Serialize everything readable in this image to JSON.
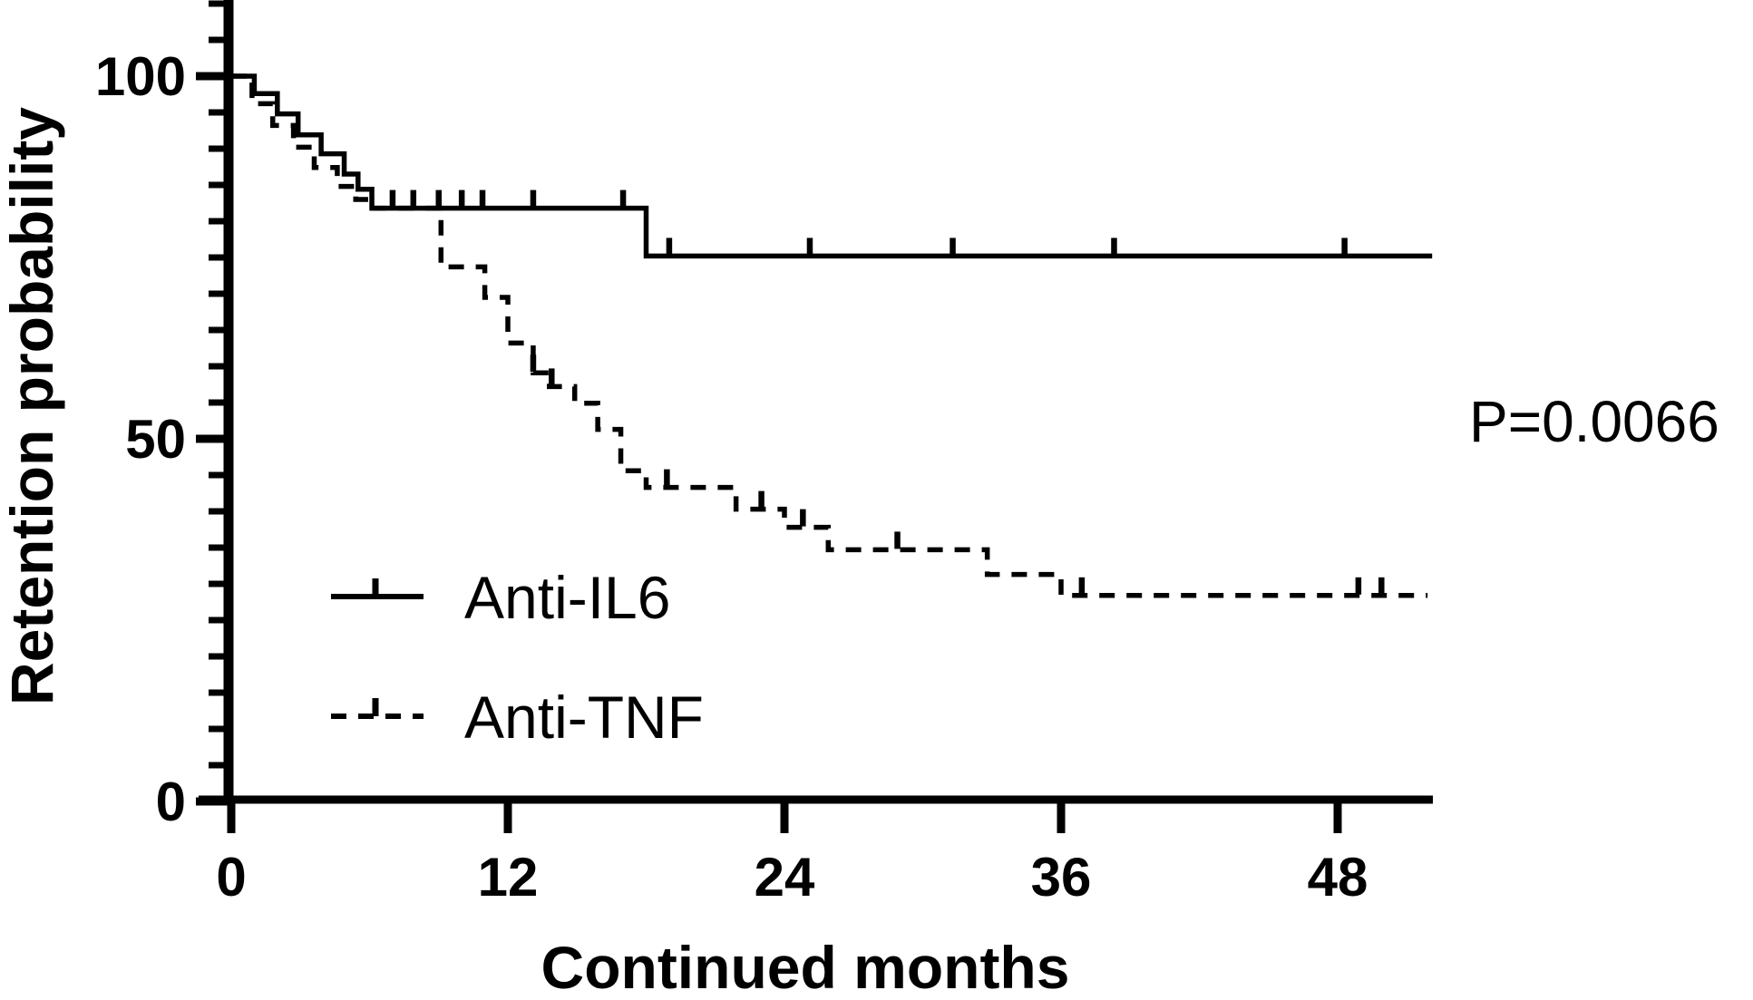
{
  "figure": {
    "p_value_label": "P=0.0066",
    "x_axis_title": "Continued months",
    "y_axis_title": "Retention probability",
    "legend": {
      "items": [
        {
          "label": "Anti-IL6",
          "line_style": "solid"
        },
        {
          "label": "Anti-TNF",
          "line_style": "dashed"
        }
      ]
    }
  },
  "colors": {
    "foreground": "#000000",
    "background": "#ffffff"
  },
  "chart_data": {
    "type": "line",
    "subtype": "kaplan-meier-step-curves",
    "title": "",
    "xlabel": "Continued months",
    "ylabel": "Retention probability",
    "xlim": [
      0,
      52.1
    ],
    "ylim": [
      0,
      110
    ],
    "x_ticks": [
      0,
      12,
      24,
      36,
      48
    ],
    "y_ticks": [
      0,
      50,
      100
    ],
    "y_minor_tick_step": 5,
    "grid": false,
    "legend_position": "inside-lower-left",
    "annotation": "P=0.0066",
    "series": [
      {
        "name": "Anti-IL6",
        "line": "solid",
        "steps": [
          [
            0,
            100
          ],
          [
            1.0,
            97.6
          ],
          [
            2.0,
            94.8
          ],
          [
            2.9,
            91.9
          ],
          [
            3.9,
            89.3
          ],
          [
            4.9,
            86.5
          ],
          [
            5.5,
            84.4
          ],
          [
            6.1,
            81.8
          ],
          [
            18.0,
            75.2
          ],
          [
            52.1,
            75.2
          ]
        ],
        "censor_marks": [
          [
            7.0,
            81.8
          ],
          [
            7.9,
            81.8
          ],
          [
            9.0,
            81.8
          ],
          [
            10.0,
            81.8
          ],
          [
            10.9,
            81.8
          ],
          [
            13.1,
            81.8
          ],
          [
            17.0,
            81.8
          ],
          [
            19.0,
            75.2
          ],
          [
            25.1,
            75.2
          ],
          [
            31.3,
            75.2
          ],
          [
            38.3,
            75.2
          ],
          [
            48.3,
            75.2
          ]
        ]
      },
      {
        "name": "Anti-TNF",
        "line": "dashed",
        "steps": [
          [
            0,
            100
          ],
          [
            0.9,
            96.2
          ],
          [
            1.8,
            93.2
          ],
          [
            2.7,
            90.2
          ],
          [
            3.6,
            87.4
          ],
          [
            4.6,
            84.8
          ],
          [
            5.4,
            83.0
          ],
          [
            6.0,
            81.8
          ],
          [
            9.1,
            73.7
          ],
          [
            11.0,
            69.5
          ],
          [
            12.0,
            63.2
          ],
          [
            13.1,
            59.1
          ],
          [
            13.8,
            57.2
          ],
          [
            14.9,
            54.9
          ],
          [
            15.9,
            51.3
          ],
          [
            16.9,
            45.6
          ],
          [
            18.0,
            43.3
          ],
          [
            21.9,
            40.3
          ],
          [
            24.0,
            37.8
          ],
          [
            25.9,
            34.7
          ],
          [
            32.8,
            31.3
          ],
          [
            36.0,
            28.4
          ],
          [
            51.9,
            28.4
          ]
        ],
        "censor_marks": [
          [
            13.1,
            59.1
          ],
          [
            13.9,
            57.2
          ],
          [
            18.9,
            43.3
          ],
          [
            23.0,
            40.3
          ],
          [
            24.8,
            37.8
          ],
          [
            28.9,
            34.7
          ],
          [
            36.9,
            28.4
          ],
          [
            48.9,
            28.4
          ],
          [
            49.9,
            28.4
          ]
        ]
      }
    ]
  }
}
